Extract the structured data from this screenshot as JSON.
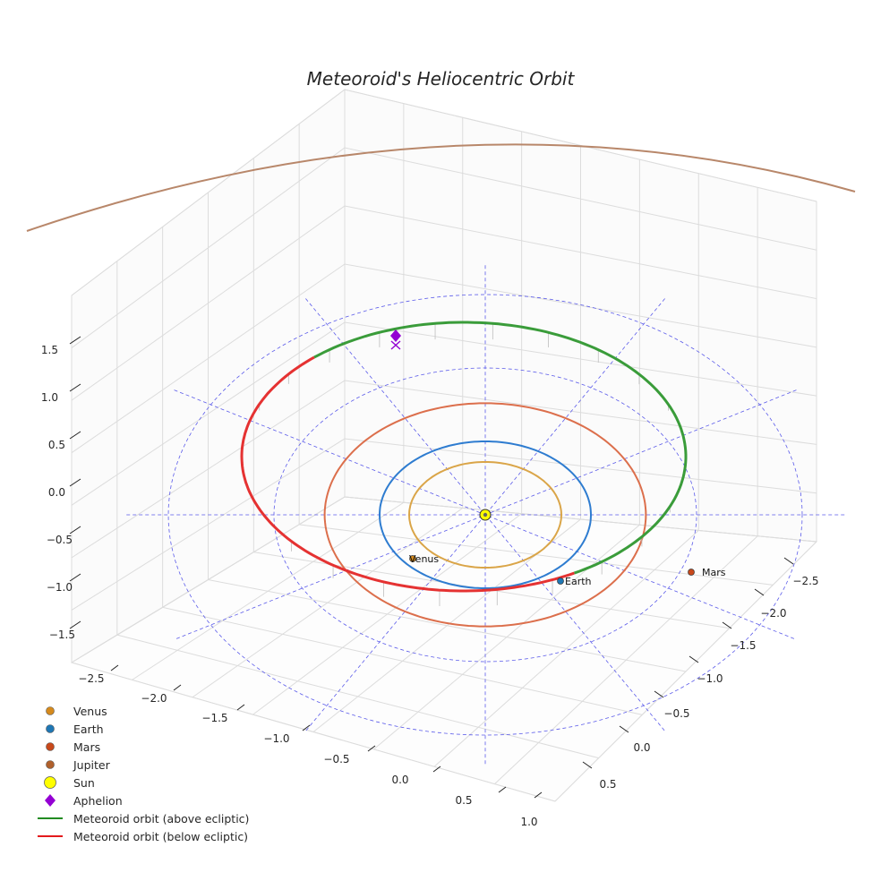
{
  "chart_data": {
    "type": "3d-orbit",
    "title": "Meteoroid's Heliocentric Orbit",
    "x_ticks": [
      "−2.5",
      "−2.0",
      "−1.5",
      "−1.0",
      "−0.5",
      "0.0",
      "0.5",
      "1.0"
    ],
    "y_ticks": [
      "−2.5",
      "−2.0",
      "−1.5",
      "−1.0",
      "−0.5",
      "0.0",
      "0.5"
    ],
    "z_ticks": [
      "1.5",
      "1.0",
      "0.5",
      "0.0",
      "−0.5",
      "−1.0",
      "−1.5"
    ],
    "xlim": [
      -2.8,
      1.1
    ],
    "ylim": [
      -2.8,
      0.7
    ],
    "zlim": [
      -1.7,
      1.8
    ],
    "planet_orbit_radii_au": {
      "Venus": 0.72,
      "Earth": 1.0,
      "Mars": 1.52,
      "Jupiter": 5.2
    },
    "ecliptic_grid_radii_au": [
      1.0,
      2.0,
      3.0
    ],
    "meteoroid_orbit": {
      "perihelion_au": 0.98,
      "aphelion_au": 2.25,
      "note": "Green segment above ecliptic, red segment below ecliptic"
    },
    "point_labels": {
      "venus": "Venus",
      "earth": "Earth",
      "mars": "Mars"
    },
    "legend": [
      {
        "label": "Venus",
        "marker": "circle",
        "color": "#d58a1d"
      },
      {
        "label": "Earth",
        "marker": "circle",
        "color": "#1f77b4"
      },
      {
        "label": "Mars",
        "marker": "circle",
        "color": "#c8491b"
      },
      {
        "label": "Jupiter",
        "marker": "circle",
        "color": "#b0602c"
      },
      {
        "label": "Sun",
        "marker": "circle-large",
        "color": "#ffff00"
      },
      {
        "label": "Aphelion",
        "marker": "diamond",
        "color": "#9400d3"
      },
      {
        "label": "Meteoroid orbit (above ecliptic)",
        "marker": "line",
        "color": "#228b22"
      },
      {
        "label": "Meteoroid orbit (below ecliptic)",
        "marker": "line",
        "color": "#e31a1c"
      }
    ],
    "colors": {
      "venus_orbit": "#daa548",
      "earth_orbit": "#2e7cd0",
      "mars_orbit": "#dc6f4c",
      "jupiter_orbit": "#b8876a",
      "above": "#3a9c3a",
      "below": "#e53232",
      "grid_dashed": "#5b5bea",
      "aphelion": "#9400d3"
    }
  }
}
